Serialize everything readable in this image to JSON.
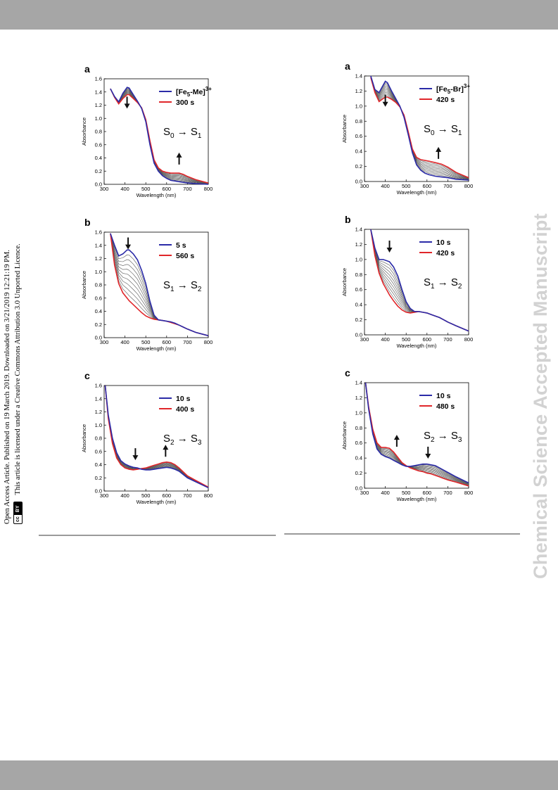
{
  "watermark": "Chemical Science Accepted Manuscript",
  "side_notice": {
    "line1": "Open Access Article. Published on 19 March 2019. Downloaded on 3/21/2019 12:21:19 PM.",
    "line2": "This article is licensed under a Creative Commons Attribution 3.0 Unported Licence.",
    "badge_cc": "cc",
    "badge_by": "BY"
  },
  "colors": {
    "blue": "#2b2ba8",
    "red": "#e0262a",
    "grey": "#555555",
    "band": "#a6a6a6"
  },
  "chart_data": [
    {
      "type": "line",
      "label": "a",
      "xlabel": "Wavelength (nm)",
      "ylabel": "Absorbance",
      "xlim": [
        300,
        800
      ],
      "ylim": [
        0,
        1.6
      ],
      "xticks": [
        "300",
        "400",
        "500",
        "600",
        "700",
        "800"
      ],
      "yticks": [
        "0.0",
        "0.2",
        "0.4",
        "0.6",
        "0.8",
        "1.0",
        "1.2",
        "1.4",
        "1.6"
      ],
      "legend": [
        {
          "name": "[Fe5-Me]3+",
          "color": "blue"
        },
        {
          "name": "300 s",
          "color": "red"
        }
      ],
      "transition": "S0 → S1",
      "arrows": [
        {
          "x": 410,
          "y": 1.18,
          "dir": "down"
        },
        {
          "x": 660,
          "y": 0.3,
          "dir": "up"
        }
      ],
      "series": [
        {
          "name": "[Fe5-Me]3+",
          "color": "blue",
          "x": [
            330,
            350,
            370,
            390,
            410,
            420,
            440,
            460,
            480,
            500,
            520,
            540,
            560,
            580,
            600,
            620,
            640,
            660,
            680,
            700,
            740,
            800
          ],
          "y": [
            1.45,
            1.33,
            1.25,
            1.38,
            1.47,
            1.46,
            1.36,
            1.26,
            1.15,
            0.95,
            0.6,
            0.32,
            0.2,
            0.13,
            0.09,
            0.06,
            0.05,
            0.04,
            0.03,
            0.02,
            0.01,
            0.0
          ]
        },
        {
          "name": "300 s",
          "color": "red",
          "x": [
            330,
            350,
            370,
            390,
            410,
            420,
            440,
            460,
            480,
            500,
            520,
            540,
            560,
            580,
            600,
            620,
            640,
            660,
            680,
            700,
            740,
            800
          ],
          "y": [
            1.45,
            1.32,
            1.22,
            1.3,
            1.36,
            1.36,
            1.3,
            1.24,
            1.16,
            0.98,
            0.66,
            0.37,
            0.25,
            0.2,
            0.18,
            0.17,
            0.17,
            0.17,
            0.15,
            0.12,
            0.07,
            0.02
          ]
        }
      ]
    },
    {
      "type": "line",
      "label": "b",
      "xlabel": "Wavelength (nm)",
      "ylabel": "Absorbance",
      "xlim": [
        300,
        800
      ],
      "ylim": [
        0,
        1.6
      ],
      "xticks": [
        "300",
        "400",
        "500",
        "600",
        "700",
        "800"
      ],
      "yticks": [
        "0.0",
        "0.2",
        "0.4",
        "0.6",
        "0.8",
        "1.0",
        "1.2",
        "1.4",
        "1.6"
      ],
      "legend": [
        {
          "name": "5 s",
          "color": "blue"
        },
        {
          "name": "560 s",
          "color": "red"
        }
      ],
      "transition": "S1 → S2",
      "arrows": [
        {
          "x": 415,
          "y": 1.37,
          "dir": "down"
        }
      ],
      "series": [
        {
          "name": "5 s",
          "color": "blue",
          "x": [
            330,
            350,
            370,
            390,
            410,
            420,
            440,
            460,
            480,
            500,
            520,
            540,
            560,
            580,
            600,
            620,
            640,
            660,
            680,
            700,
            740,
            800
          ],
          "y": [
            1.58,
            1.4,
            1.24,
            1.27,
            1.33,
            1.33,
            1.27,
            1.18,
            1.02,
            0.82,
            0.55,
            0.34,
            0.27,
            0.26,
            0.25,
            0.24,
            0.22,
            0.19,
            0.16,
            0.13,
            0.08,
            0.03
          ]
        },
        {
          "name": "560 s",
          "color": "red",
          "x": [
            330,
            350,
            370,
            390,
            410,
            420,
            440,
            460,
            480,
            500,
            520,
            540,
            560,
            580,
            600,
            620,
            640,
            660,
            680,
            700,
            740,
            800
          ],
          "y": [
            1.58,
            1.1,
            0.82,
            0.68,
            0.6,
            0.56,
            0.5,
            0.44,
            0.38,
            0.33,
            0.3,
            0.28,
            0.27,
            0.26,
            0.25,
            0.23,
            0.21,
            0.19,
            0.16,
            0.13,
            0.08,
            0.03
          ]
        }
      ]
    },
    {
      "type": "line",
      "label": "c",
      "xlabel": "Wavelength (nm)",
      "ylabel": "Absorbance",
      "xlim": [
        300,
        800
      ],
      "ylim": [
        0,
        1.6
      ],
      "xticks": [
        "300",
        "400",
        "500",
        "600",
        "700",
        "800"
      ],
      "yticks": [
        "0.0",
        "0.2",
        "0.4",
        "0.6",
        "0.8",
        "1.0",
        "1.2",
        "1.4",
        "1.6"
      ],
      "legend": [
        {
          "name": "10 s",
          "color": "blue"
        },
        {
          "name": "400 s",
          "color": "red"
        }
      ],
      "transition": "S2 → S3",
      "arrows": [
        {
          "x": 450,
          "y": 0.5,
          "dir": "down"
        },
        {
          "x": 595,
          "y": 0.52,
          "dir": "up"
        }
      ],
      "series": [
        {
          "name": "10 s",
          "color": "blue",
          "x": [
            305,
            320,
            340,
            360,
            380,
            400,
            420,
            440,
            460,
            480,
            500,
            520,
            540,
            560,
            580,
            600,
            620,
            640,
            660,
            680,
            700,
            740,
            800
          ],
          "y": [
            1.6,
            1.15,
            0.8,
            0.58,
            0.46,
            0.41,
            0.38,
            0.36,
            0.35,
            0.33,
            0.32,
            0.32,
            0.33,
            0.34,
            0.35,
            0.36,
            0.35,
            0.33,
            0.3,
            0.25,
            0.2,
            0.14,
            0.05
          ]
        },
        {
          "name": "400 s",
          "color": "red",
          "x": [
            305,
            320,
            340,
            360,
            380,
            400,
            420,
            440,
            460,
            480,
            500,
            520,
            540,
            560,
            580,
            600,
            620,
            640,
            660,
            680,
            700,
            740,
            800
          ],
          "y": [
            1.6,
            1.1,
            0.72,
            0.5,
            0.4,
            0.35,
            0.33,
            0.32,
            0.33,
            0.34,
            0.35,
            0.37,
            0.39,
            0.41,
            0.43,
            0.44,
            0.43,
            0.4,
            0.35,
            0.29,
            0.23,
            0.16,
            0.06
          ]
        }
      ]
    },
    {
      "type": "line",
      "label": "a",
      "xlabel": "Wavelength (nm)",
      "ylabel": "Absorbance",
      "xlim": [
        300,
        800
      ],
      "ylim": [
        0,
        1.4
      ],
      "xticks": [
        "300",
        "400",
        "500",
        "600",
        "700",
        "800"
      ],
      "yticks": [
        "0.0",
        "0.2",
        "0.4",
        "0.6",
        "0.8",
        "1.0",
        "1.2",
        "1.4"
      ],
      "legend": [
        {
          "name": "[Fe5-Br]3+",
          "color": "blue"
        },
        {
          "name": "420 s",
          "color": "red"
        }
      ],
      "transition": "S0 → S1",
      "arrows": [
        {
          "x": 400,
          "y": 1.02,
          "dir": "down"
        },
        {
          "x": 655,
          "y": 0.3,
          "dir": "up"
        }
      ],
      "series": [
        {
          "name": "[Fe5-Br]3+",
          "color": "blue",
          "x": [
            330,
            350,
            370,
            390,
            400,
            410,
            430,
            450,
            470,
            490,
            510,
            530,
            550,
            570,
            590,
            610,
            640,
            670,
            700,
            740,
            800
          ],
          "y": [
            1.4,
            1.22,
            1.18,
            1.28,
            1.33,
            1.31,
            1.2,
            1.1,
            1.0,
            0.85,
            0.62,
            0.38,
            0.22,
            0.15,
            0.11,
            0.09,
            0.07,
            0.06,
            0.05,
            0.03,
            0.02
          ]
        },
        {
          "name": "420 s",
          "color": "red",
          "x": [
            330,
            350,
            370,
            390,
            400,
            410,
            430,
            450,
            470,
            490,
            510,
            530,
            550,
            570,
            590,
            610,
            640,
            670,
            700,
            740,
            800
          ],
          "y": [
            1.38,
            1.18,
            1.06,
            1.1,
            1.12,
            1.12,
            1.09,
            1.05,
            0.99,
            0.88,
            0.66,
            0.43,
            0.32,
            0.29,
            0.28,
            0.27,
            0.25,
            0.23,
            0.19,
            0.12,
            0.05
          ]
        }
      ]
    },
    {
      "type": "line",
      "label": "b",
      "xlabel": "Wavelength (nm)",
      "ylabel": "Absorbance",
      "xlim": [
        300,
        800
      ],
      "ylim": [
        0,
        1.4
      ],
      "xticks": [
        "300",
        "400",
        "500",
        "600",
        "700",
        "800"
      ],
      "yticks": [
        "0.0",
        "0.2",
        "0.4",
        "0.6",
        "0.8",
        "1.0",
        "1.2",
        "1.4"
      ],
      "legend": [
        {
          "name": "10 s",
          "color": "blue"
        },
        {
          "name": "420 s",
          "color": "red"
        }
      ],
      "transition": "S1 → S2",
      "arrows": [
        {
          "x": 420,
          "y": 1.12,
          "dir": "down"
        }
      ],
      "series": [
        {
          "name": "10 s",
          "color": "blue",
          "x": [
            330,
            350,
            370,
            390,
            410,
            420,
            440,
            460,
            480,
            500,
            520,
            540,
            560,
            580,
            600,
            620,
            640,
            660,
            680,
            700,
            740,
            800
          ],
          "y": [
            1.4,
            1.15,
            1.0,
            1.0,
            0.98,
            0.97,
            0.9,
            0.78,
            0.6,
            0.44,
            0.35,
            0.31,
            0.31,
            0.3,
            0.29,
            0.27,
            0.25,
            0.23,
            0.2,
            0.17,
            0.12,
            0.05
          ]
        },
        {
          "name": "420 s",
          "color": "red",
          "x": [
            330,
            350,
            370,
            390,
            410,
            420,
            440,
            460,
            480,
            500,
            520,
            540,
            560,
            580,
            600,
            620,
            640,
            660,
            680,
            700,
            740,
            800
          ],
          "y": [
            1.4,
            1.05,
            0.82,
            0.68,
            0.58,
            0.53,
            0.45,
            0.38,
            0.33,
            0.3,
            0.29,
            0.3,
            0.31,
            0.3,
            0.29,
            0.27,
            0.25,
            0.23,
            0.2,
            0.17,
            0.12,
            0.05
          ]
        }
      ]
    },
    {
      "type": "line",
      "label": "c",
      "xlabel": "Wavelength (nm)",
      "ylabel": "Absorbance",
      "xlim": [
        300,
        800
      ],
      "ylim": [
        0,
        1.4
      ],
      "xticks": [
        "300",
        "400",
        "500",
        "600",
        "700",
        "800"
      ],
      "yticks": [
        "0.0",
        "0.2",
        "0.4",
        "0.6",
        "0.8",
        "1.0",
        "1.2",
        "1.4"
      ],
      "legend": [
        {
          "name": "10 s",
          "color": "blue"
        },
        {
          "name": "480 s",
          "color": "red"
        }
      ],
      "transition": "S2 → S3",
      "arrows": [
        {
          "x": 455,
          "y": 0.55,
          "dir": "up"
        },
        {
          "x": 605,
          "y": 0.42,
          "dir": "down"
        }
      ],
      "series": [
        {
          "name": "10 s",
          "color": "blue",
          "x": [
            305,
            320,
            340,
            360,
            380,
            400,
            420,
            440,
            460,
            480,
            500,
            520,
            540,
            560,
            580,
            600,
            620,
            640,
            660,
            680,
            700,
            740,
            800
          ],
          "y": [
            1.4,
            1.05,
            0.72,
            0.52,
            0.45,
            0.42,
            0.4,
            0.37,
            0.34,
            0.31,
            0.29,
            0.29,
            0.3,
            0.31,
            0.32,
            0.32,
            0.31,
            0.3,
            0.27,
            0.24,
            0.21,
            0.15,
            0.07
          ]
        },
        {
          "name": "480 s",
          "color": "red",
          "x": [
            305,
            320,
            340,
            360,
            380,
            400,
            420,
            440,
            460,
            480,
            500,
            520,
            540,
            560,
            580,
            600,
            620,
            640,
            660,
            680,
            700,
            740,
            800
          ],
          "y": [
            1.4,
            1.08,
            0.78,
            0.6,
            0.54,
            0.54,
            0.53,
            0.48,
            0.41,
            0.34,
            0.3,
            0.27,
            0.25,
            0.23,
            0.22,
            0.2,
            0.19,
            0.17,
            0.15,
            0.13,
            0.11,
            0.08,
            0.03
          ]
        }
      ]
    }
  ]
}
